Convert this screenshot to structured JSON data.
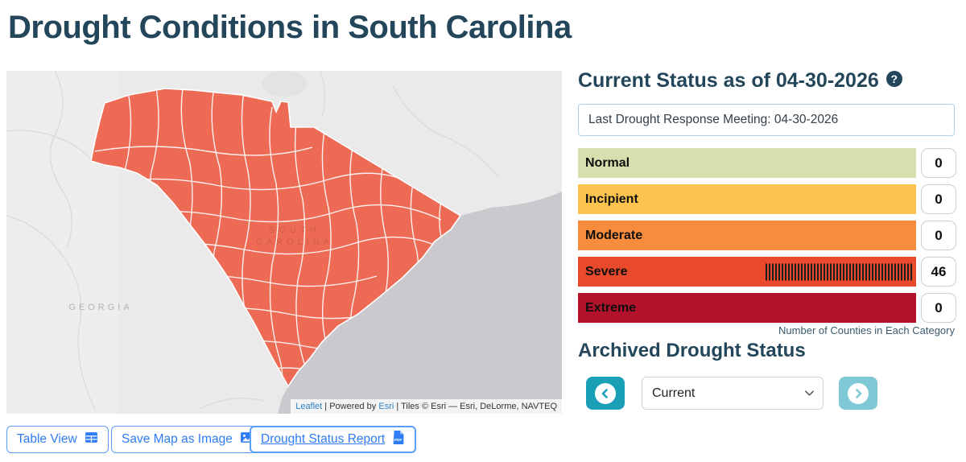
{
  "page": {
    "title": "Drought Conditions in South Carolina"
  },
  "map": {
    "fill_color": "#ed6b55",
    "labels": {
      "georgia": "GEORGIA",
      "state_line1": "SOUTH",
      "state_line2": "CAROLINA"
    },
    "attribution": {
      "leaflet_link": "Leaflet",
      "middle": " | Powered by ",
      "esri_link": "Esri",
      "tail": " | Tiles © Esri — Esri, DeLorme, NAVTEQ"
    }
  },
  "status": {
    "heading": "Current Status as of 04-30-2026",
    "help_glyph": "?",
    "meeting_note": "Last Drought Response Meeting: 04-30-2026",
    "caption": "Number of Counties in Each Category",
    "categories": [
      {
        "label": "Normal",
        "value": 0,
        "color": "#d8dfae",
        "show_ticks": false
      },
      {
        "label": "Incipient",
        "value": 0,
        "color": "#fcc34e",
        "show_ticks": false
      },
      {
        "label": "Moderate",
        "value": 0,
        "color": "#f68c3c",
        "show_ticks": false
      },
      {
        "label": "Severe",
        "value": 46,
        "color": "#e84a2b",
        "show_ticks": true
      },
      {
        "label": "Extreme",
        "value": 0,
        "color": "#b2122c",
        "show_ticks": false
      }
    ]
  },
  "archive": {
    "heading": "Archived Drought Status",
    "select_value": "Current"
  },
  "actions": {
    "table_view": "Table View",
    "save_image": "Save Map as Image",
    "report": "Drought Status Report"
  }
}
